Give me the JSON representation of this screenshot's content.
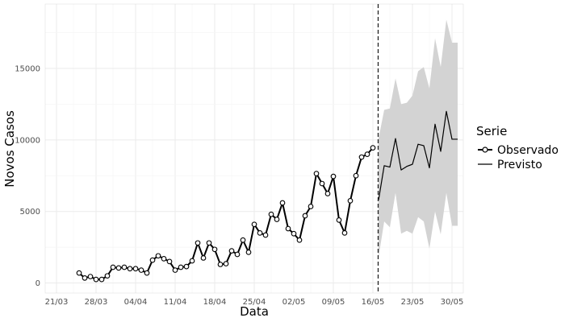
{
  "chart_data": {
    "type": "line",
    "xlabel": "Data",
    "ylabel": "Novos Casos",
    "x_tick_labels": [
      "21/03",
      "28/03",
      "04/04",
      "11/04",
      "18/04",
      "25/04",
      "02/05",
      "09/05",
      "16/05",
      "23/05",
      "30/05"
    ],
    "y_tick_labels": [
      "0",
      "5000",
      "10000",
      "15000"
    ],
    "y_ticks": [
      0,
      5000,
      10000,
      15000
    ],
    "ylim": [
      -700,
      19500
    ],
    "xlim": [
      "2020-03-19",
      "2020-06-01"
    ],
    "forecast_start": "2020-05-17",
    "legend": {
      "title": "Serie",
      "position": "right",
      "entries": [
        "Observado",
        "Previsto"
      ]
    },
    "grid": true,
    "series": [
      {
        "name": "Observado",
        "style": "line-with-points",
        "x": [
          "2020-03-25",
          "2020-03-26",
          "2020-03-27",
          "2020-03-28",
          "2020-03-29",
          "2020-03-30",
          "2020-03-31",
          "2020-04-01",
          "2020-04-02",
          "2020-04-03",
          "2020-04-04",
          "2020-04-05",
          "2020-04-06",
          "2020-04-07",
          "2020-04-08",
          "2020-04-09",
          "2020-04-10",
          "2020-04-11",
          "2020-04-12",
          "2020-04-13",
          "2020-04-14",
          "2020-04-15",
          "2020-04-16",
          "2020-04-17",
          "2020-04-18",
          "2020-04-19",
          "2020-04-20",
          "2020-04-21",
          "2020-04-22",
          "2020-04-23",
          "2020-04-24",
          "2020-04-25",
          "2020-04-26",
          "2020-04-27",
          "2020-04-28",
          "2020-04-29",
          "2020-04-30",
          "2020-05-01",
          "2020-05-02",
          "2020-05-03",
          "2020-05-04",
          "2020-05-05",
          "2020-05-06",
          "2020-05-07",
          "2020-05-08",
          "2020-05-09",
          "2020-05-10",
          "2020-05-11",
          "2020-05-12",
          "2020-05-13",
          "2020-05-14",
          "2020-05-15",
          "2020-05-16"
        ],
        "values": [
          700,
          350,
          450,
          250,
          250,
          500,
          1100,
          1050,
          1100,
          1000,
          1000,
          900,
          700,
          1600,
          1900,
          1700,
          1500,
          900,
          1100,
          1150,
          1550,
          2800,
          1750,
          2800,
          2350,
          1300,
          1350,
          2250,
          2000,
          3000,
          2150,
          4100,
          3500,
          3350,
          4800,
          4450,
          5600,
          3800,
          3450,
          3000,
          4700,
          5350,
          7650,
          6950,
          6250,
          7450,
          4400,
          3500,
          5750,
          7500,
          8800,
          9000,
          9450
        ],
        "color": "#000000"
      },
      {
        "name": "Previsto",
        "style": "line",
        "x": [
          "2020-05-17",
          "2020-05-18",
          "2020-05-19",
          "2020-05-20",
          "2020-05-21",
          "2020-05-22",
          "2020-05-23",
          "2020-05-24",
          "2020-05-25",
          "2020-05-26",
          "2020-05-27",
          "2020-05-28",
          "2020-05-29",
          "2020-05-30",
          "2020-05-31"
        ],
        "values": [
          5800,
          8200,
          8100,
          10100,
          7900,
          8150,
          8300,
          9700,
          9600,
          8050,
          11100,
          9200,
          12000,
          10050,
          10050
        ],
        "lower": [
          1800,
          4300,
          3900,
          6300,
          3450,
          3650,
          3450,
          4600,
          4300,
          2400,
          5000,
          3400,
          6300,
          4000,
          4000
        ],
        "upper": [
          10100,
          12100,
          12200,
          14300,
          12500,
          12600,
          13100,
          14800,
          15100,
          13600,
          17100,
          15100,
          18400,
          16800,
          16800
        ],
        "line_color": "#000000",
        "band_color": "#d3d3d3"
      }
    ]
  }
}
